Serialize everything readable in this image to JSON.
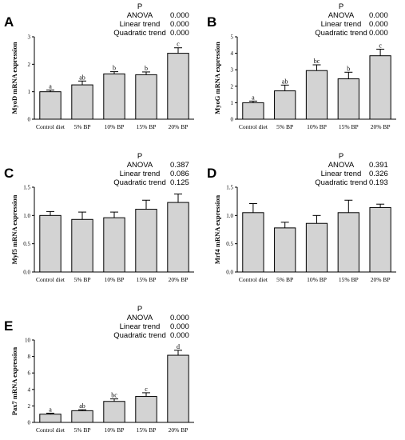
{
  "colors": {
    "bar_fill": "#d3d3d3",
    "stroke": "#000000"
  },
  "chart_data": [
    {
      "panel": "A",
      "type": "bar",
      "ylabel": "MyoD mRNA expression",
      "categories": [
        "Control diet",
        "5% BP",
        "10% BP",
        "15% BP",
        "20% BP"
      ],
      "values": [
        1.0,
        1.25,
        1.65,
        1.62,
        2.4
      ],
      "errors": [
        0.06,
        0.14,
        0.08,
        0.1,
        0.2
      ],
      "sig_labels": [
        "a",
        "ab",
        "b",
        "b",
        "c"
      ],
      "ylim": [
        0,
        3
      ],
      "yticks": [
        0,
        1,
        2,
        3
      ],
      "stats": {
        "header": "P",
        "rows": [
          {
            "name": "ANOVA",
            "value": "0.000"
          },
          {
            "name": "Linear trend",
            "value": "0.000"
          },
          {
            "name": "Quadratic trend",
            "value": "0.000"
          }
        ]
      }
    },
    {
      "panel": "B",
      "type": "bar",
      "ylabel": "MyoG mRNA expression",
      "categories": [
        "Control diet",
        "5% BP",
        "10% BP",
        "15% BP",
        "20% BP"
      ],
      "values": [
        1.0,
        1.72,
        2.95,
        2.45,
        3.85
      ],
      "errors": [
        0.1,
        0.35,
        0.35,
        0.4,
        0.4
      ],
      "sig_labels": [
        "a",
        "ab",
        "bc",
        "b",
        "c"
      ],
      "ylim": [
        0,
        5
      ],
      "yticks": [
        0,
        1,
        2,
        3,
        4,
        5
      ],
      "stats": {
        "header": "P",
        "rows": [
          {
            "name": "ANOVA",
            "value": "0.000"
          },
          {
            "name": "Linear trend",
            "value": "0.000"
          },
          {
            "name": "Quadratic trend",
            "value": "0.000"
          }
        ]
      }
    },
    {
      "panel": "C",
      "type": "bar",
      "ylabel": "Myf5 mRNA expression",
      "categories": [
        "Control diet",
        "5% BP",
        "10% BP",
        "15% BP",
        "20% BP"
      ],
      "values": [
        1.0,
        0.93,
        0.96,
        1.11,
        1.23
      ],
      "errors": [
        0.07,
        0.13,
        0.1,
        0.16,
        0.15
      ],
      "sig_labels": [
        "",
        "",
        "",
        "",
        ""
      ],
      "ylim": [
        0,
        1.5
      ],
      "yticks": [
        0,
        0.5,
        1.0,
        1.5
      ],
      "stats": {
        "header": "P",
        "rows": [
          {
            "name": "ANOVA",
            "value": "0.387"
          },
          {
            "name": "Linear trend",
            "value": "0.086"
          },
          {
            "name": "Quadratic trend",
            "value": "0.125"
          }
        ]
      }
    },
    {
      "panel": "D",
      "type": "bar",
      "ylabel": "Mrf4 mRNA expression",
      "categories": [
        "Control diet",
        "5% BP",
        "10% BP",
        "15% BP",
        "20% BP"
      ],
      "values": [
        1.05,
        0.78,
        0.86,
        1.05,
        1.14
      ],
      "errors": [
        0.16,
        0.1,
        0.14,
        0.22,
        0.06
      ],
      "sig_labels": [
        "",
        "",
        "",
        "",
        ""
      ],
      "ylim": [
        0,
        1.5
      ],
      "yticks": [
        0,
        0.5,
        1.0,
        1.5
      ],
      "stats": {
        "header": "P",
        "rows": [
          {
            "name": "ANOVA",
            "value": "0.391"
          },
          {
            "name": "Linear trend",
            "value": "0.326"
          },
          {
            "name": "Quadratic trend",
            "value": "0.193"
          }
        ]
      }
    },
    {
      "panel": "E",
      "type": "bar",
      "ylabel": "Pax7 mRNA expression",
      "categories": [
        "Control diet",
        "5% BP",
        "10% BP",
        "15% BP",
        "20% BP"
      ],
      "values": [
        1.0,
        1.42,
        2.55,
        3.15,
        8.15
      ],
      "errors": [
        0.12,
        0.12,
        0.3,
        0.45,
        0.6
      ],
      "sig_labels": [
        "a",
        "ab",
        "bc",
        "c",
        "d"
      ],
      "ylim": [
        0,
        10
      ],
      "yticks": [
        0,
        2,
        4,
        6,
        8,
        10
      ],
      "stats": {
        "header": "P",
        "rows": [
          {
            "name": "ANOVA",
            "value": "0.000"
          },
          {
            "name": "Linear trend",
            "value": "0.000"
          },
          {
            "name": "Quadratic trend",
            "value": "0.000"
          }
        ]
      }
    }
  ]
}
